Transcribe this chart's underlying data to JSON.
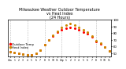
{
  "title": "Milwaukee Weather Outdoor Temperature\nvs Heat Index\n(24 Hours)",
  "title_fontsize": 3.5,
  "title_color": "#000000",
  "title_ha": "center",
  "legend": [
    "Outdoor Temp",
    "Heat Index"
  ],
  "legend_fontsize": 2.8,
  "background_color": "#ffffff",
  "plot_bg_color": "#ffffff",
  "hours": [
    0,
    1,
    2,
    3,
    4,
    5,
    6,
    7,
    8,
    9,
    10,
    11,
    12,
    13,
    14,
    15,
    16,
    17,
    18,
    19,
    20,
    21,
    22,
    23
  ],
  "hour_labels": [
    "12a",
    "1",
    "2",
    "3",
    "4",
    "5",
    "6",
    "7",
    "8",
    "9",
    "10",
    "11",
    "12p",
    "1",
    "2",
    "3",
    "4",
    "5",
    "6",
    "7",
    "8",
    "9",
    "10",
    "11"
  ],
  "temp": [
    52,
    51,
    50,
    49,
    48,
    48,
    50,
    55,
    63,
    70,
    76,
    81,
    85,
    87,
    88,
    87,
    85,
    82,
    79,
    75,
    68,
    64,
    59,
    54
  ],
  "heat_index": [
    52,
    51,
    50,
    49,
    48,
    48,
    50,
    55,
    63,
    70,
    77,
    83,
    88,
    92,
    94,
    92,
    88,
    85,
    81,
    76,
    69,
    65,
    59,
    54
  ],
  "temp_color": "#ff0000",
  "heat_index_color": "#cc8800",
  "ylim": [
    45,
    100
  ],
  "ytick_values": [
    50,
    60,
    70,
    80,
    90,
    100
  ],
  "ytick_labels": [
    "50",
    "60",
    "70",
    "80",
    "90",
    "100"
  ],
  "grid_color": "#bbbbbb",
  "marker_size": 1.2,
  "vgrid_hours": [
    0,
    4,
    8,
    12,
    16,
    20
  ]
}
